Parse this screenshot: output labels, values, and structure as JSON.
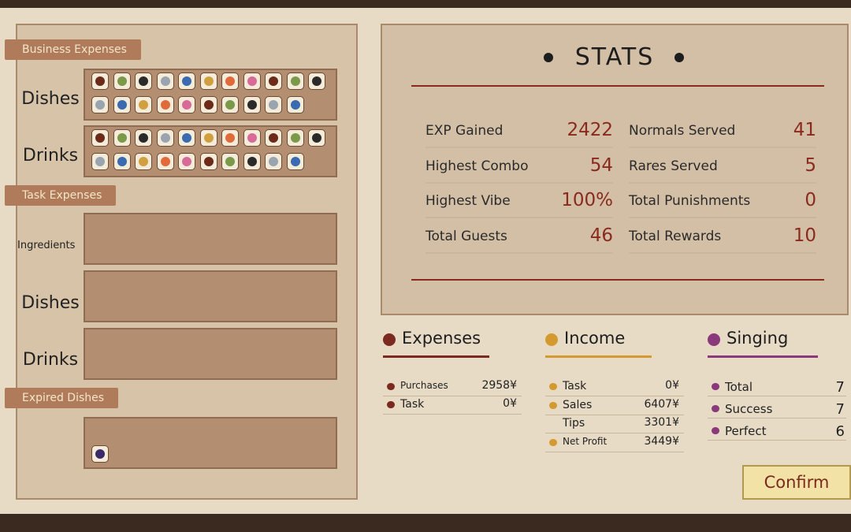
{
  "business_expenses": {
    "title": "Business Expenses",
    "rows": [
      {
        "label": "Dishes"
      },
      {
        "label": "Drinks"
      }
    ]
  },
  "task_expenses": {
    "title": "Task Expenses",
    "rows": [
      {
        "label": "Ingredients"
      },
      {
        "label": "Dishes"
      },
      {
        "label": "Drinks"
      }
    ]
  },
  "expired_dishes": {
    "title": "Expired Dishes"
  },
  "stats": {
    "title": "STATS",
    "items": [
      {
        "label": "EXP Gained",
        "value": "2422"
      },
      {
        "label": "Normals Served",
        "value": "41"
      },
      {
        "label": "Highest Combo",
        "value": "54"
      },
      {
        "label": "Rares Served",
        "value": "5"
      },
      {
        "label": "Highest Vibe",
        "value": "100%"
      },
      {
        "label": "Total Punishments",
        "value": "0"
      },
      {
        "label": "Total Guests",
        "value": "46"
      },
      {
        "label": "Total Rewards",
        "value": "10"
      }
    ]
  },
  "expenses": {
    "title": "Expenses",
    "rows": [
      {
        "label": "Purchases",
        "value": "2958¥"
      },
      {
        "label": "Task",
        "value": "0¥"
      }
    ]
  },
  "income": {
    "title": "Income",
    "rows": [
      {
        "label": "Task",
        "value": "0¥"
      },
      {
        "label": "Sales",
        "value": "6407¥"
      },
      {
        "label": "Tips",
        "value": "3301¥"
      },
      {
        "label": "Net Profit",
        "value": "3449¥"
      }
    ]
  },
  "singing": {
    "title": "Singing",
    "rows": [
      {
        "label": "Total",
        "value": "7"
      },
      {
        "label": "Success",
        "value": "7"
      },
      {
        "label": "Perfect",
        "value": "6"
      }
    ]
  },
  "confirm": "Confirm"
}
